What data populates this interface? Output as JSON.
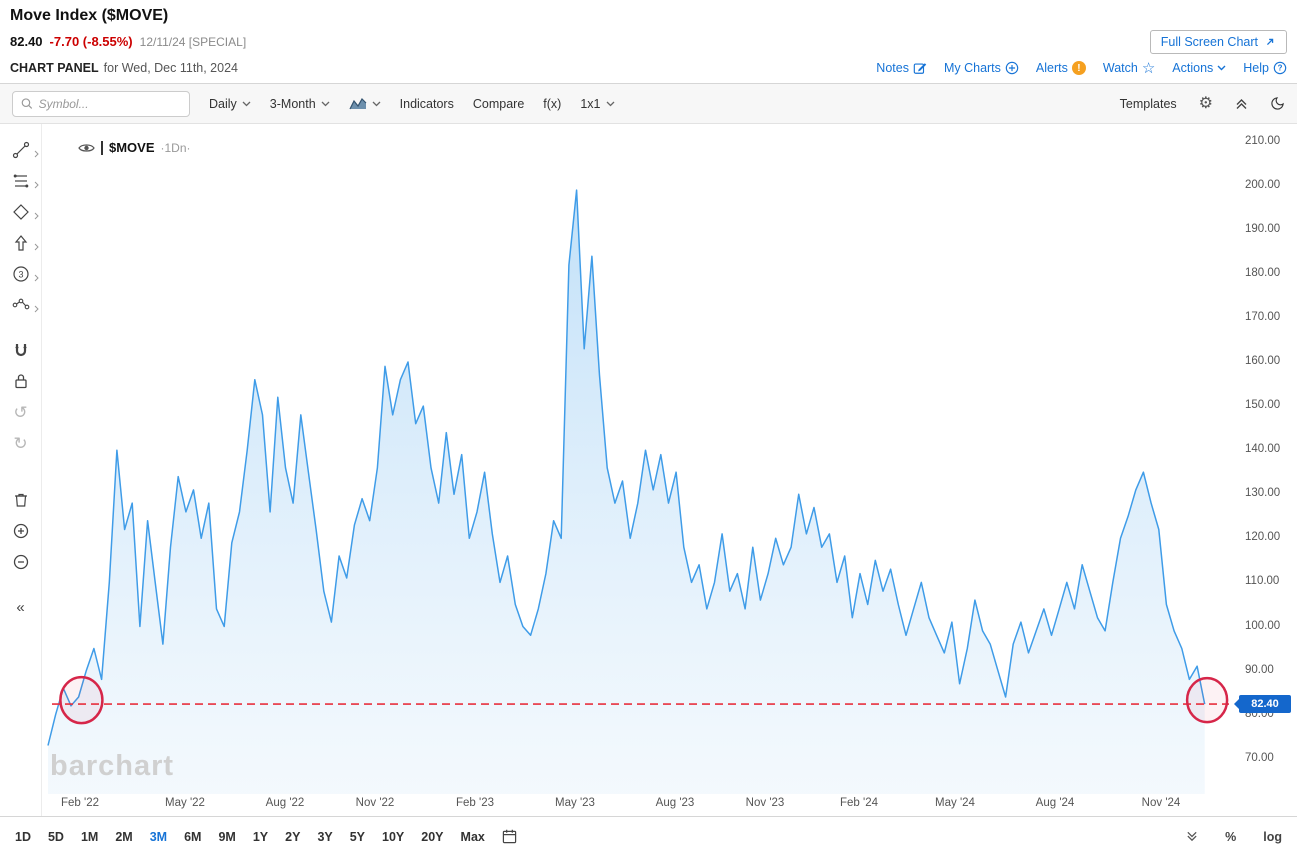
{
  "header": {
    "title": "Move Index ($MOVE)",
    "last_price": "82.40",
    "change": "-7.70 (-8.55%)",
    "date_note": "12/11/24 [SPECIAL]",
    "full_screen_label": "Full Screen Chart",
    "panel_label": "CHART PANEL",
    "panel_date": "for Wed, Dec 11th, 2024",
    "links": {
      "notes": "Notes",
      "my_charts": "My Charts",
      "alerts": "Alerts",
      "alerts_badge": "!",
      "watch": "Watch",
      "actions": "Actions",
      "help": "Help"
    }
  },
  "toolbar": {
    "symbol_placeholder": "Symbol...",
    "frequency": "Daily",
    "range": "3-Month",
    "indicators": "Indicators",
    "compare": "Compare",
    "fx": "f(x)",
    "grid": "1x1",
    "templates": "Templates"
  },
  "legend": {
    "symbol": "$MOVE",
    "suffix": "·1Dn·"
  },
  "watermark": "barchart",
  "price_badge": "82.40",
  "bottom_bar": {
    "ranges": [
      "1D",
      "5D",
      "1M",
      "2M",
      "3M",
      "6M",
      "9M",
      "1Y",
      "2Y",
      "3Y",
      "5Y",
      "10Y",
      "20Y",
      "Max"
    ],
    "active_range": "3M",
    "percent": "%",
    "log": "log"
  },
  "colors": {
    "line_blue": "#3f9ce8",
    "fill_top": "#b7dbf7",
    "fill_bottom": "#eaf4fc",
    "accent_blue": "#1673d6",
    "change_red": "#cc0000",
    "annotation_red": "#d62649",
    "badge_blue": "#1467cc"
  },
  "chart_data": {
    "type": "area",
    "title": "Move Index ($MOVE)",
    "xlabel": "",
    "ylabel": "",
    "grid": false,
    "legend_position": "top-left",
    "ylim": [
      62,
      214
    ],
    "y_ticks": [
      210,
      200,
      190,
      180,
      170,
      160,
      150,
      140,
      130,
      120,
      110,
      100,
      90,
      80,
      70
    ],
    "x_tick_labels": [
      "Feb '22",
      "May '22",
      "Aug '22",
      "Nov '22",
      "Feb '23",
      "May '23",
      "Aug '23",
      "Nov '23",
      "Feb '24",
      "May '24",
      "Aug '24",
      "Nov '24"
    ],
    "x_tick_pos": [
      0.032,
      0.12,
      0.203,
      0.279,
      0.362,
      0.446,
      0.53,
      0.605,
      0.684,
      0.764,
      0.848,
      0.936
    ],
    "series": [
      {
        "name": "$MOVE",
        "values": [
          73,
          80,
          86,
          82,
          84,
          90,
          95,
          88,
          110,
          140,
          122,
          128,
          100,
          124,
          110,
          96,
          118,
          134,
          126,
          131,
          120,
          128,
          104,
          100,
          119,
          126,
          140,
          156,
          148,
          126,
          152,
          136,
          128,
          148,
          135,
          122,
          108,
          101,
          116,
          111,
          123,
          129,
          124,
          136,
          159,
          148,
          156,
          160,
          146,
          150,
          136,
          128,
          144,
          130,
          139,
          120,
          126,
          135,
          121,
          110,
          116,
          105,
          100,
          98,
          104,
          112,
          124,
          120,
          182,
          199,
          163,
          184,
          157,
          136,
          128,
          133,
          120,
          128,
          140,
          131,
          139,
          128,
          135,
          118,
          110,
          114,
          104,
          110,
          121,
          108,
          112,
          104,
          118,
          106,
          112,
          120,
          114,
          118,
          130,
          121,
          127,
          118,
          121,
          110,
          116,
          102,
          112,
          105,
          115,
          108,
          113,
          105,
          98,
          104,
          110,
          102,
          98,
          94,
          101,
          87,
          95,
          106,
          99,
          96,
          90,
          84,
          96,
          101,
          94,
          99,
          104,
          98,
          104,
          110,
          104,
          114,
          108,
          102,
          99,
          110,
          120,
          125,
          131,
          135,
          128,
          122,
          105,
          99,
          95,
          88,
          91,
          82.4
        ]
      }
    ],
    "last_value": 82.4,
    "annotation": {
      "type": "dashed-line-with-circles",
      "value": 82.4,
      "circle_points": [
        0.033,
        0.975
      ]
    }
  }
}
